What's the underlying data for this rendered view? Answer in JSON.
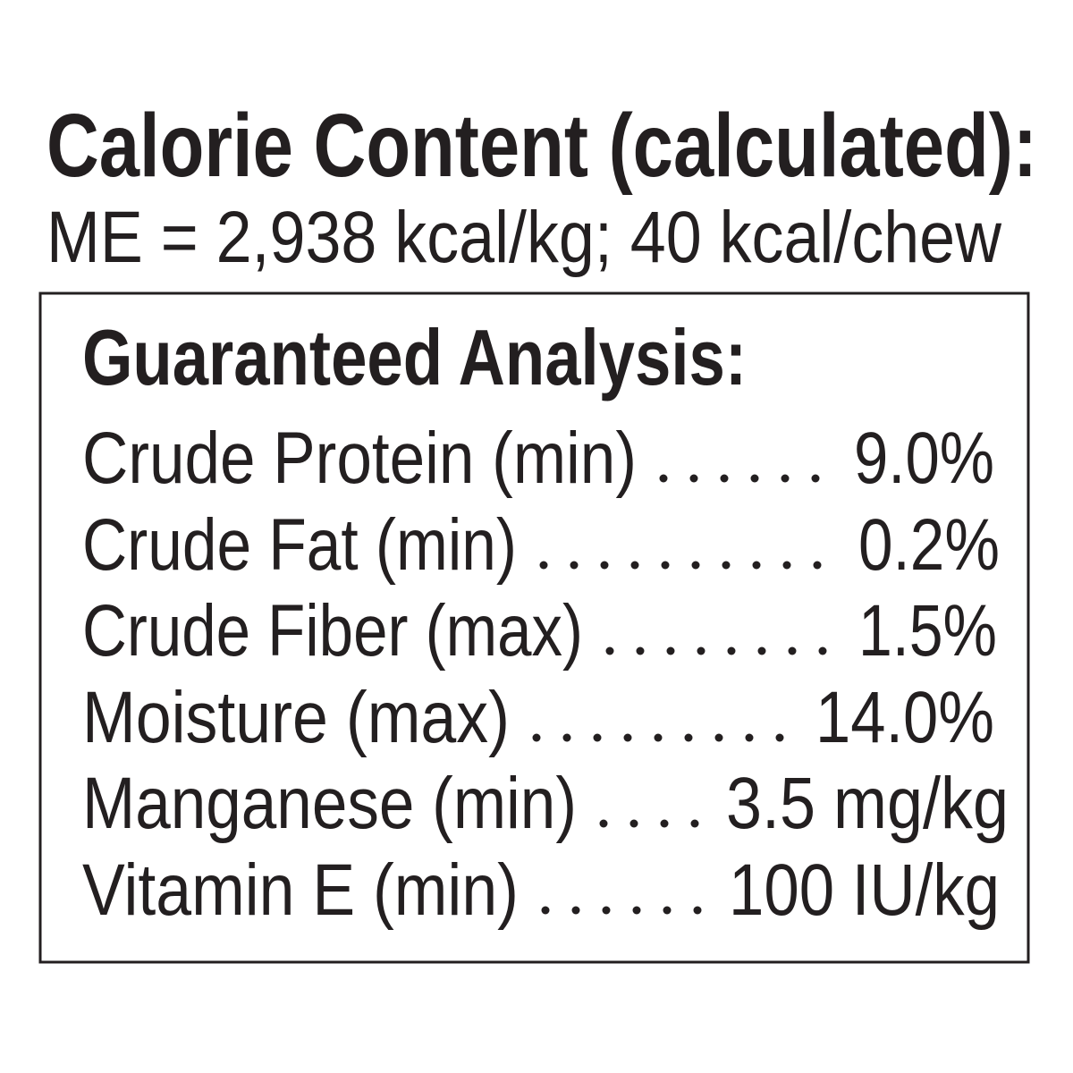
{
  "header": {
    "title": "Calorie Content (calculated):",
    "subtitle": "ME = 2,938 kcal/kg; 40 kcal/chew"
  },
  "analysis": {
    "title": "Guaranteed Analysis:",
    "rows": [
      {
        "label": "Crude Protein (min)",
        "value": "9.0%"
      },
      {
        "label": "Crude Fat (min)",
        "value": "0.2%"
      },
      {
        "label": "Crude Fiber (max)",
        "value": "1.5%"
      },
      {
        "label": "Moisture (max)",
        "value": "14.0%"
      },
      {
        "label": "Manganese (min)",
        "value": "3.5 mg/kg"
      },
      {
        "label": "Vitamin E (min)",
        "value": "100 IU/kg"
      }
    ]
  }
}
